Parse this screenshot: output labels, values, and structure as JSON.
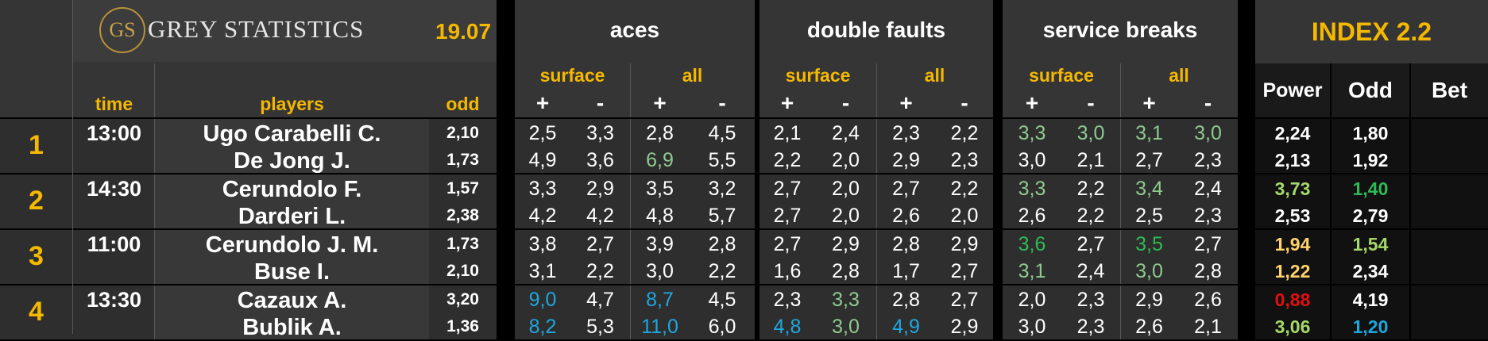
{
  "header": {
    "logo_text": "GS",
    "brand": "GREY STATISTICS",
    "date": "19.07",
    "groups": [
      "aces",
      "double faults",
      "service breaks"
    ],
    "index_title": "INDEX 2.2",
    "surface_label": "surface",
    "all_label": "all",
    "plus": "+",
    "minus": "-",
    "time_label": "time",
    "players_label": "players",
    "odd_label": "odd",
    "power_label": "Power",
    "odd2_label": "Odd",
    "bet_label": "Bet"
  },
  "matches": [
    {
      "num": "1",
      "time": "13:00",
      "players": [
        {
          "name": "Ugo Carabelli C.",
          "odd": "2,10",
          "stats": [
            [
              "2,5",
              ""
            ],
            [
              "3,3",
              ""
            ],
            [
              "2,8",
              ""
            ],
            [
              "4,5",
              ""
            ],
            [
              "2,1",
              ""
            ],
            [
              "2,4",
              ""
            ],
            [
              "2,3",
              ""
            ],
            [
              "2,2",
              ""
            ],
            [
              "3,3",
              "green"
            ],
            [
              "3,0",
              "green"
            ],
            [
              "3,1",
              "green"
            ],
            [
              "3,0",
              "green"
            ]
          ],
          "power": [
            "2,24",
            "white"
          ],
          "odd2": [
            "1,80",
            "white"
          ]
        },
        {
          "name": "De Jong J.",
          "odd": "1,73",
          "stats": [
            [
              "4,9",
              ""
            ],
            [
              "3,6",
              ""
            ],
            [
              "6,9",
              "green"
            ],
            [
              "5,5",
              ""
            ],
            [
              "2,2",
              ""
            ],
            [
              "2,0",
              ""
            ],
            [
              "2,9",
              ""
            ],
            [
              "2,3",
              ""
            ],
            [
              "3,0",
              ""
            ],
            [
              "2,1",
              ""
            ],
            [
              "2,7",
              ""
            ],
            [
              "2,3",
              ""
            ]
          ],
          "power": [
            "2,13",
            "white"
          ],
          "odd2": [
            "1,92",
            "white"
          ]
        }
      ]
    },
    {
      "num": "2",
      "time": "14:30",
      "players": [
        {
          "name": "Cerundolo F.",
          "odd": "1,57",
          "stats": [
            [
              "3,3",
              ""
            ],
            [
              "2,9",
              ""
            ],
            [
              "3,5",
              ""
            ],
            [
              "3,2",
              ""
            ],
            [
              "2,7",
              ""
            ],
            [
              "2,0",
              ""
            ],
            [
              "2,7",
              ""
            ],
            [
              "2,2",
              ""
            ],
            [
              "3,3",
              "green"
            ],
            [
              "2,2",
              ""
            ],
            [
              "3,4",
              "green"
            ],
            [
              "2,4",
              ""
            ]
          ],
          "power": [
            "3,73",
            "lgreen"
          ],
          "odd2": [
            "1,40",
            "dgreen"
          ]
        },
        {
          "name": "Darderi L.",
          "odd": "2,38",
          "stats": [
            [
              "4,2",
              ""
            ],
            [
              "4,2",
              ""
            ],
            [
              "4,8",
              ""
            ],
            [
              "5,7",
              ""
            ],
            [
              "2,7",
              ""
            ],
            [
              "2,0",
              ""
            ],
            [
              "2,6",
              ""
            ],
            [
              "2,0",
              ""
            ],
            [
              "2,6",
              ""
            ],
            [
              "2,2",
              ""
            ],
            [
              "2,5",
              ""
            ],
            [
              "2,3",
              ""
            ]
          ],
          "power": [
            "2,53",
            "white"
          ],
          "odd2": [
            "2,79",
            "white"
          ]
        }
      ]
    },
    {
      "num": "3",
      "time": "11:00",
      "players": [
        {
          "name": "Cerundolo J. M.",
          "odd": "1,73",
          "stats": [
            [
              "3,8",
              ""
            ],
            [
              "2,7",
              ""
            ],
            [
              "3,9",
              ""
            ],
            [
              "2,8",
              ""
            ],
            [
              "2,7",
              ""
            ],
            [
              "2,9",
              ""
            ],
            [
              "2,8",
              ""
            ],
            [
              "2,9",
              ""
            ],
            [
              "3,6",
              "dgreen"
            ],
            [
              "2,7",
              ""
            ],
            [
              "3,5",
              "dgreen"
            ],
            [
              "2,7",
              ""
            ]
          ],
          "power": [
            "1,94",
            "yellow"
          ],
          "odd2": [
            "1,54",
            "lgreen"
          ]
        },
        {
          "name": "Buse I.",
          "odd": "2,10",
          "stats": [
            [
              "3,1",
              ""
            ],
            [
              "2,2",
              ""
            ],
            [
              "3,0",
              ""
            ],
            [
              "2,2",
              ""
            ],
            [
              "1,6",
              ""
            ],
            [
              "2,8",
              ""
            ],
            [
              "1,7",
              ""
            ],
            [
              "2,7",
              ""
            ],
            [
              "3,1",
              "green"
            ],
            [
              "2,4",
              ""
            ],
            [
              "3,0",
              "green"
            ],
            [
              "2,8",
              ""
            ]
          ],
          "power": [
            "1,22",
            "yellow"
          ],
          "odd2": [
            "2,34",
            "white"
          ]
        }
      ]
    },
    {
      "num": "4",
      "time": "13:30",
      "players": [
        {
          "name": "Cazaux A.",
          "odd": "3,20",
          "stats": [
            [
              "9,0",
              "blue"
            ],
            [
              "4,7",
              ""
            ],
            [
              "8,7",
              "blue"
            ],
            [
              "4,5",
              ""
            ],
            [
              "2,3",
              ""
            ],
            [
              "3,3",
              "green"
            ],
            [
              "2,8",
              ""
            ],
            [
              "2,7",
              ""
            ],
            [
              "2,0",
              ""
            ],
            [
              "2,3",
              ""
            ],
            [
              "2,9",
              ""
            ],
            [
              "2,6",
              ""
            ]
          ],
          "power": [
            "0,88",
            "red"
          ],
          "odd2": [
            "4,19",
            "white"
          ]
        },
        {
          "name": "Bublik A.",
          "odd": "1,36",
          "stats": [
            [
              "8,2",
              "blue"
            ],
            [
              "5,3",
              ""
            ],
            [
              "11,0",
              "blue"
            ],
            [
              "6,0",
              ""
            ],
            [
              "4,8",
              "blue"
            ],
            [
              "3,0",
              "green"
            ],
            [
              "4,9",
              "blue"
            ],
            [
              "2,9",
              ""
            ],
            [
              "3,0",
              ""
            ],
            [
              "2,3",
              ""
            ],
            [
              "2,6",
              ""
            ],
            [
              "2,1",
              ""
            ]
          ],
          "power": [
            "3,06",
            "lgreen"
          ],
          "odd2": [
            "1,20",
            "blue"
          ]
        }
      ]
    }
  ],
  "colors": {
    "header_bg": "#353535",
    "row_bg": "#2e2e2e",
    "separator": "#000000",
    "accent_yellow": "#f5b800",
    "stat_green": "#8fca8f",
    "stat_blue": "#1ea7df",
    "power_green": "#a6d96a",
    "odd_green": "#2fba55",
    "power_yellow": "#ffd36b",
    "power_red": "#e01010"
  }
}
